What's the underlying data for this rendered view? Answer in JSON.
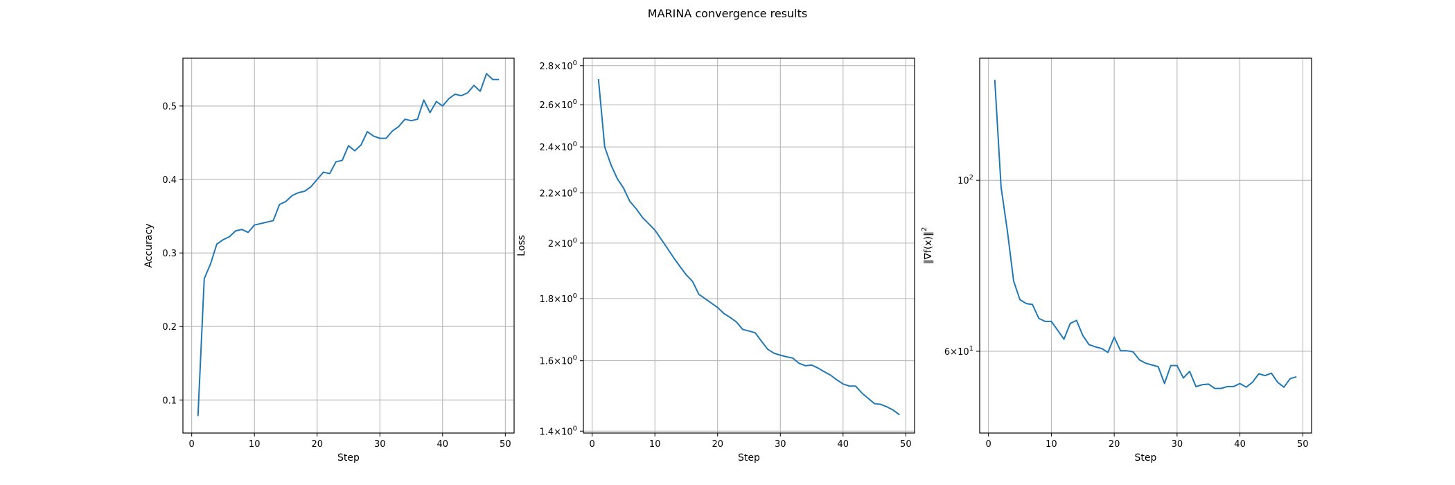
{
  "figure": {
    "title": "MARINA convergence results"
  },
  "chart_data": [
    {
      "type": "line",
      "title": "",
      "xlabel": "Step",
      "ylabel": "Accuracy",
      "xlim": [
        -1.4,
        51.4
      ],
      "ylim": [
        0.055,
        0.565
      ],
      "yscale": "linear",
      "grid": true,
      "xticks": [
        0,
        10,
        20,
        30,
        40,
        50
      ],
      "xtick_labels": [
        "0",
        "10",
        "20",
        "30",
        "40",
        "50"
      ],
      "yticks": [
        0.1,
        0.2,
        0.3,
        0.4,
        0.5
      ],
      "ytick_labels": [
        "0.1",
        "0.2",
        "0.3",
        "0.4",
        "0.5"
      ],
      "series": [
        {
          "color": "#1f77b4",
          "x": [
            1,
            2,
            3,
            4,
            5,
            6,
            7,
            8,
            9,
            10,
            11,
            12,
            13,
            14,
            15,
            16,
            17,
            18,
            19,
            20,
            21,
            22,
            23,
            24,
            25,
            26,
            27,
            28,
            29,
            30,
            31,
            32,
            33,
            34,
            35,
            36,
            37,
            38,
            39,
            40,
            41,
            42,
            43,
            44,
            45,
            46,
            47,
            48,
            49
          ],
          "y": [
            0.078,
            0.265,
            0.285,
            0.312,
            0.318,
            0.322,
            0.33,
            0.332,
            0.328,
            0.338,
            0.34,
            0.342,
            0.344,
            0.366,
            0.37,
            0.378,
            0.382,
            0.384,
            0.39,
            0.4,
            0.41,
            0.408,
            0.424,
            0.426,
            0.446,
            0.439,
            0.447,
            0.465,
            0.459,
            0.456,
            0.456,
            0.466,
            0.472,
            0.482,
            0.48,
            0.482,
            0.508,
            0.491,
            0.506,
            0.5,
            0.51,
            0.516,
            0.514,
            0.518,
            0.528,
            0.52,
            0.544,
            0.536,
            0.536
          ]
        }
      ]
    },
    {
      "type": "line",
      "title": "",
      "xlabel": "Step",
      "ylabel": "Loss",
      "xlim": [
        -1.4,
        51.4
      ],
      "ylim": [
        1.395,
        2.84
      ],
      "yscale": "log",
      "grid": true,
      "xticks": [
        0,
        10,
        20,
        30,
        40,
        50
      ],
      "xtick_labels": [
        "0",
        "10",
        "20",
        "30",
        "40",
        "50"
      ],
      "yticks": [
        1.4,
        1.6,
        1.8,
        2.0,
        2.2,
        2.4,
        2.6,
        2.8
      ],
      "ytick_mantissas": [
        "1.4",
        "1.6",
        "1.8",
        "2",
        "2.2",
        "2.4",
        "2.6",
        "2.8"
      ],
      "ytick_times": "×",
      "ytick_base": "10",
      "ytick_exponent": "0",
      "series": [
        {
          "color": "#1f77b4",
          "x": [
            1,
            2,
            3,
            4,
            5,
            6,
            7,
            8,
            9,
            10,
            11,
            12,
            13,
            14,
            15,
            16,
            17,
            18,
            19,
            20,
            21,
            22,
            23,
            24,
            25,
            26,
            27,
            28,
            29,
            30,
            31,
            32,
            33,
            34,
            35,
            36,
            37,
            38,
            39,
            40,
            41,
            42,
            43,
            44,
            45,
            46,
            47,
            48,
            49
          ],
          "y": [
            2.73,
            2.4,
            2.32,
            2.26,
            2.22,
            2.165,
            2.135,
            2.1,
            2.075,
            2.05,
            2.015,
            1.98,
            1.945,
            1.913,
            1.883,
            1.86,
            1.815,
            1.8,
            1.785,
            1.77,
            1.75,
            1.737,
            1.722,
            1.698,
            1.693,
            1.687,
            1.66,
            1.635,
            1.623,
            1.617,
            1.612,
            1.608,
            1.592,
            1.585,
            1.587,
            1.578,
            1.567,
            1.557,
            1.543,
            1.531,
            1.525,
            1.525,
            1.505,
            1.49,
            1.475,
            1.473,
            1.466,
            1.457,
            1.444
          ]
        }
      ]
    },
    {
      "type": "line",
      "title": "",
      "xlabel": "Step",
      "ylabel": "‖∇f(x)‖",
      "ylabel_superscript": "2",
      "xlim": [
        -1.4,
        51.4
      ],
      "ylim": [
        47.0,
        144.0
      ],
      "yscale": "log",
      "grid": true,
      "xticks": [
        0,
        10,
        20,
        30,
        40,
        50
      ],
      "xtick_labels": [
        "0",
        "10",
        "20",
        "30",
        "40",
        "50"
      ],
      "yticks": [
        60,
        100
      ],
      "ytick_mantissas": [
        "6",
        ""
      ],
      "ytick_times": "×",
      "ytick_base": "10",
      "ytick_exponents": [
        "1",
        "2"
      ],
      "series": [
        {
          "color": "#1f77b4",
          "x": [
            1,
            2,
            3,
            4,
            5,
            6,
            7,
            8,
            9,
            10,
            11,
            12,
            13,
            14,
            15,
            16,
            17,
            18,
            19,
            20,
            21,
            22,
            23,
            24,
            25,
            26,
            27,
            28,
            29,
            30,
            31,
            32,
            33,
            34,
            35,
            36,
            37,
            38,
            39,
            40,
            41,
            42,
            43,
            44,
            45,
            46,
            47,
            48,
            49
          ],
          "y": [
            135,
            98,
            86,
            74,
            70,
            69.2,
            69,
            66.2,
            65.6,
            65.6,
            63.9,
            62.2,
            65.2,
            65.8,
            62.9,
            61.2,
            60.8,
            60.5,
            59.8,
            62.6,
            60.1,
            60.1,
            59.9,
            58.5,
            57.9,
            57.6,
            57.3,
            54.5,
            57.5,
            57.5,
            55.4,
            56.5,
            54.0,
            54.3,
            54.4,
            53.7,
            53.7,
            54.0,
            54.0,
            54.5,
            53.9,
            54.7,
            56.1,
            55.8,
            56.2,
            54.7,
            53.9,
            55.3,
            55.6
          ]
        }
      ]
    }
  ]
}
